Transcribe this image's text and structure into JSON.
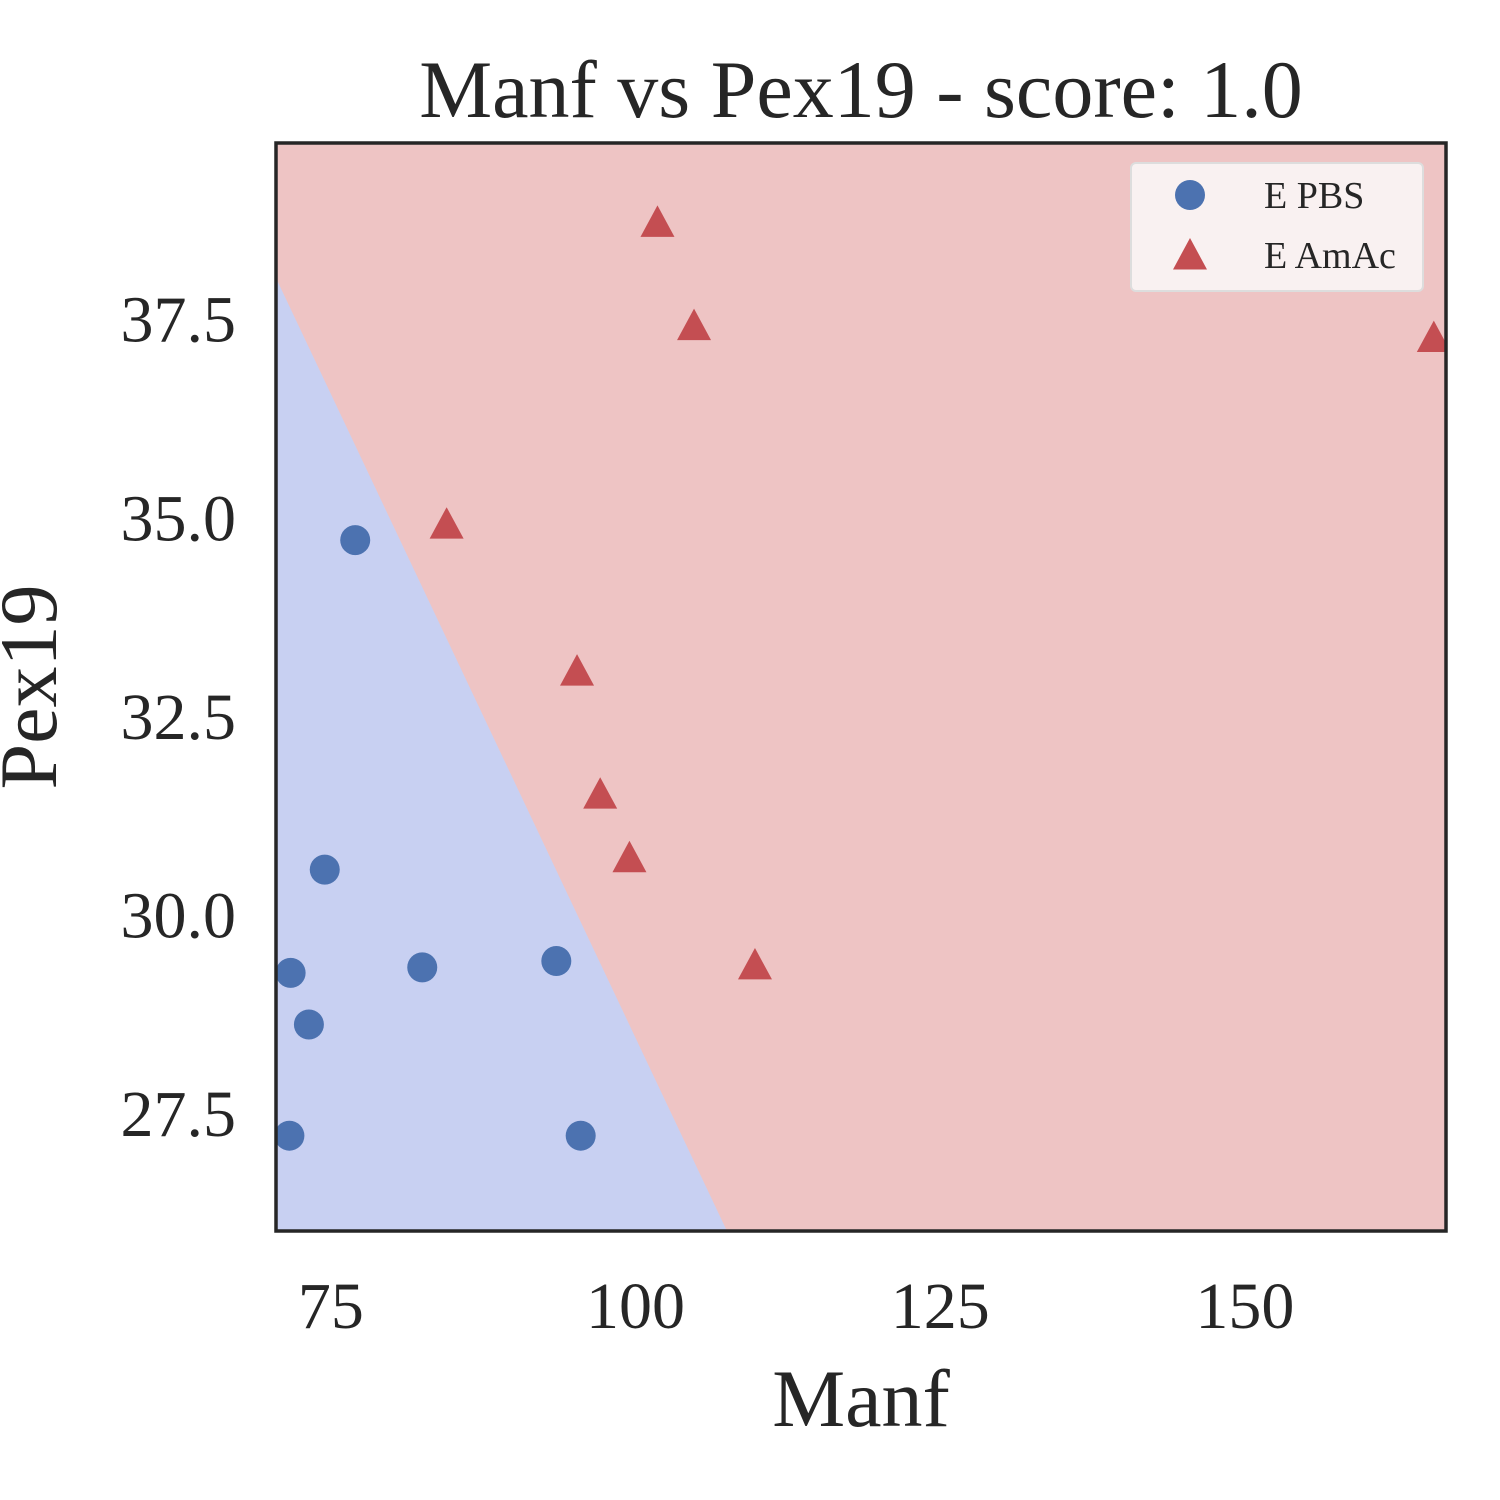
{
  "chart_data": {
    "type": "scatter",
    "title": "Manf vs Pex19 - score: 1.0",
    "xlabel": "Manf",
    "ylabel": "Pex19",
    "xlim": [
      70.5,
      166.5
    ],
    "ylim": [
      26.0,
      39.7
    ],
    "xticks": [
      75,
      100,
      125,
      150
    ],
    "xtick_labels": [
      "75",
      "100",
      "125",
      "150"
    ],
    "yticks": [
      27.5,
      30.0,
      32.5,
      35.0,
      37.5
    ],
    "ytick_labels": [
      "27.5",
      "30.0",
      "32.5",
      "35.0",
      "37.5"
    ],
    "grid": false,
    "legend_position": "top-right",
    "decision_boundary": {
      "points": [
        [
          70.5,
          38.0
        ],
        [
          107.5,
          26.0
        ]
      ],
      "region_left_class": "E PBS",
      "region_right_class": "E AmAc"
    },
    "region_colors": {
      "E PBS": "#c8d0f2",
      "E AmAc": "#eec4c4"
    },
    "series": [
      {
        "name": "E PBS",
        "marker": "circle",
        "color": "#4c72b0",
        "points": [
          [
            77,
            34.7
          ],
          [
            74.5,
            30.55
          ],
          [
            71.7,
            29.25
          ],
          [
            73.2,
            28.6
          ],
          [
            82.5,
            29.32
          ],
          [
            93.5,
            29.4
          ],
          [
            71.6,
            27.2
          ],
          [
            95.5,
            27.2
          ]
        ]
      },
      {
        "name": "E AmAc",
        "marker": "triangle",
        "color": "#c44e52",
        "points": [
          [
            101.8,
            38.7
          ],
          [
            104.8,
            37.4
          ],
          [
            165.5,
            37.25
          ],
          [
            84.5,
            34.9
          ],
          [
            95.2,
            33.05
          ],
          [
            97.1,
            31.5
          ],
          [
            99.5,
            30.7
          ],
          [
            109.8,
            29.35
          ]
        ]
      }
    ]
  }
}
